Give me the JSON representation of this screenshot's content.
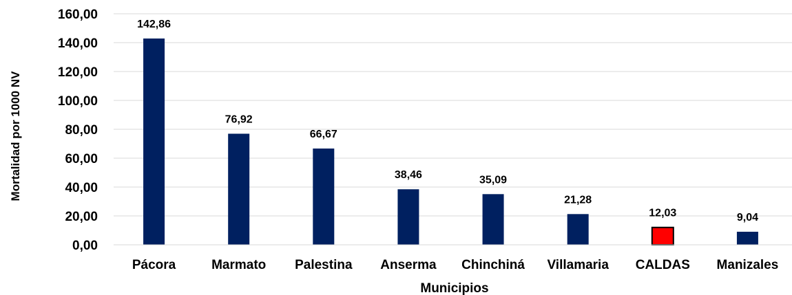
{
  "chart_data": {
    "type": "bar",
    "categories": [
      "Pácora",
      "Marmato",
      "Palestina",
      "Anserma",
      "Chinchiná",
      "Villamaria",
      "CALDAS",
      "Manizales"
    ],
    "values": [
      142.86,
      76.92,
      66.67,
      38.46,
      35.09,
      21.28,
      12.03,
      9.04
    ],
    "value_labels": [
      "142,86",
      "76,92",
      "66,67",
      "38,46",
      "35,09",
      "21,28",
      "12,03",
      "9,04"
    ],
    "xlabel": "Municipios",
    "ylabel": "Mortalidad por 1000 NV",
    "ylim": [
      0,
      160
    ],
    "y_ticks": [
      0,
      20,
      40,
      60,
      80,
      100,
      120,
      140,
      160
    ],
    "y_tick_labels": [
      "0,00",
      "20,00",
      "40,00",
      "60,00",
      "80,00",
      "100,00",
      "120,00",
      "140,00",
      "160,00"
    ],
    "grid": true,
    "colors": {
      "bar": "#002060",
      "highlight": "#ff0000",
      "highlight_border": "#000000",
      "grid": "#d9d9d9"
    },
    "highlight_category": "CALDAS"
  }
}
